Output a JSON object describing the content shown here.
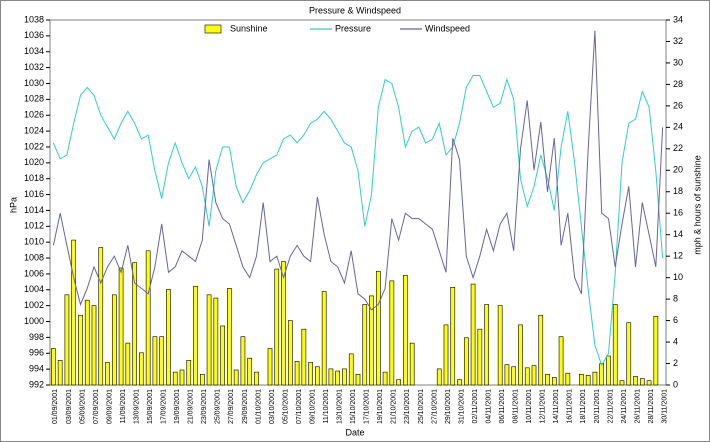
{
  "chart_data": {
    "type": "combo",
    "title": "Pressure & Windspeed",
    "xlabel": "Date",
    "ylabel": "hPa",
    "y2label": "mph & hours of sunshine",
    "categories": [
      "01/09/2001",
      null,
      "03/09/2001",
      null,
      "05/09/2001",
      null,
      "07/09/2001",
      null,
      "09/09/2001",
      null,
      "11/09/2001",
      null,
      "13/09/2001",
      null,
      "15/09/2001",
      null,
      "17/09/2001",
      null,
      "19/09/2001",
      null,
      "21/09/2001",
      null,
      "23/09/2001",
      null,
      "25/09/2001",
      null,
      "27/09/2001",
      null,
      "29/09/2001",
      null,
      "01/10/2001",
      null,
      "03/10/2001",
      null,
      "05/10/2001",
      null,
      "07/10/2001",
      null,
      "09/10/2001",
      null,
      "11/10/2001",
      null,
      "13/10/2001",
      null,
      "15/10/2001",
      null,
      "17/10/2001",
      null,
      "19/10/2001",
      null,
      "21/10/2001",
      null,
      "23/10/2001",
      null,
      "25/10/2001",
      null,
      "27/10/2001",
      null,
      "29/10/2001",
      null,
      "31/10/2001",
      null,
      "02/11/2001",
      null,
      "04/11/2001",
      null,
      "06/11/2001",
      null,
      "08/11/2001",
      null,
      "10/11/2001",
      null,
      "12/11/2001",
      null,
      "14/11/2001",
      null,
      "16/11/2001",
      null,
      "18/11/2001",
      null,
      "20/11/2001",
      null,
      "22/11/2001",
      null,
      "24/11/2001",
      null,
      "26/11/2001",
      null,
      "28/11/2001",
      null,
      "30/11/2001"
    ],
    "series": [
      {
        "name": "Sunshine",
        "type": "bar",
        "axis": "y2",
        "color": "#ffff00",
        "values": [
          3.4,
          2.3,
          8.4,
          13.5,
          6.5,
          7.9,
          7.4,
          12.8,
          2.1,
          8.4,
          10.9,
          3.9,
          11.4,
          3,
          12.5,
          4.5,
          4.5,
          8.9,
          1.2,
          1.4,
          2.3,
          9.2,
          1,
          8.4,
          8.1,
          5.5,
          9,
          1.4,
          4.5,
          2.5,
          1.2,
          0,
          3.4,
          10.8,
          11.5,
          6,
          2.2,
          5.2,
          2.1,
          1.7,
          8.7,
          1.5,
          1.3,
          1.5,
          2.9,
          1,
          7.5,
          8.3,
          10.6,
          1.2,
          9.7,
          0.5,
          10.2,
          3.9,
          0,
          0,
          0,
          1.5,
          5.6,
          9.1,
          0.5,
          4.4,
          9.4,
          5.2,
          7.5,
          0,
          7.4,
          1.9,
          1.7,
          5.6,
          1.6,
          1.8,
          6.5,
          1,
          0.7,
          4.5,
          1.1,
          0,
          1,
          0.9,
          1.2,
          2,
          2.7,
          7.5,
          0.4,
          5.8,
          0.8,
          0.6,
          0.4,
          6.4,
          0
        ]
      },
      {
        "name": "Pressure",
        "type": "line",
        "color": "#33cccc",
        "values": [
          1022.5,
          1020.5,
          1021,
          1025,
          1028.5,
          1029.5,
          1028.5,
          1026,
          1024.5,
          1023,
          1025,
          1026.5,
          1025,
          1023,
          1023.5,
          1019,
          1015.5,
          1020,
          1022.5,
          1020,
          1018,
          1019.5,
          1017,
          1012,
          1019,
          1022,
          1022,
          1017,
          1015,
          1016.5,
          1018.5,
          1020,
          1020.5,
          1021,
          1023,
          1023.5,
          1022.5,
          1023.5,
          1025,
          1025.5,
          1026.5,
          1025.5,
          1024,
          1022.5,
          1022,
          1019,
          1012,
          1016,
          1027,
          1030.5,
          1030,
          1027,
          1022,
          1024,
          1024.5,
          1022.5,
          1023,
          1025,
          1021,
          1022,
          1025,
          1029.5,
          1031,
          1031,
          1029,
          1027,
          1027.5,
          1030.5,
          1028,
          1018,
          1014.5,
          1017,
          1021,
          1018,
          1014,
          1022,
          1026.5,
          1020,
          1012,
          1004,
          997,
          994.5,
          996,
          1006,
          1020,
          1025,
          1025.5,
          1029,
          1027,
          1019,
          1008
        ]
      },
      {
        "name": "Windspeed",
        "type": "line",
        "axis": "y2",
        "color": "#666699",
        "values": [
          13,
          16,
          13,
          10,
          7.5,
          9,
          11,
          9.5,
          11,
          12,
          10.5,
          13,
          9.5,
          9,
          8.5,
          11,
          15,
          10.5,
          11,
          12.5,
          12,
          11.5,
          13.5,
          21,
          17,
          15.5,
          15,
          13,
          11,
          10,
          12,
          17,
          11.5,
          12,
          10,
          12,
          13,
          12,
          11.5,
          17.5,
          14,
          11.5,
          11,
          9.5,
          12.5,
          8.5,
          8,
          7,
          7.5,
          9,
          15.5,
          13.5,
          16,
          15.5,
          15.5,
          15,
          14.5,
          12.5,
          10.5,
          23,
          21,
          12,
          10,
          12,
          14.5,
          12.5,
          15,
          16,
          12.5,
          22,
          26.5,
          20,
          24.5,
          18,
          23,
          13,
          16,
          10,
          8.5,
          22,
          33,
          16,
          15.5,
          11,
          15,
          18.5,
          11,
          17,
          14,
          11,
          24
        ]
      }
    ],
    "ylim": [
      992,
      1038
    ],
    "yticks": [
      992,
      994,
      996,
      998,
      1000,
      1002,
      1004,
      1006,
      1008,
      1010,
      1012,
      1014,
      1016,
      1018,
      1020,
      1022,
      1024,
      1026,
      1028,
      1030,
      1032,
      1034,
      1036,
      1038
    ],
    "y2lim": [
      0,
      34
    ],
    "y2ticks": [
      0,
      2,
      4,
      6,
      8,
      10,
      12,
      14,
      16,
      18,
      20,
      22,
      24,
      26,
      28,
      30,
      32,
      34
    ],
    "legend": "top"
  }
}
